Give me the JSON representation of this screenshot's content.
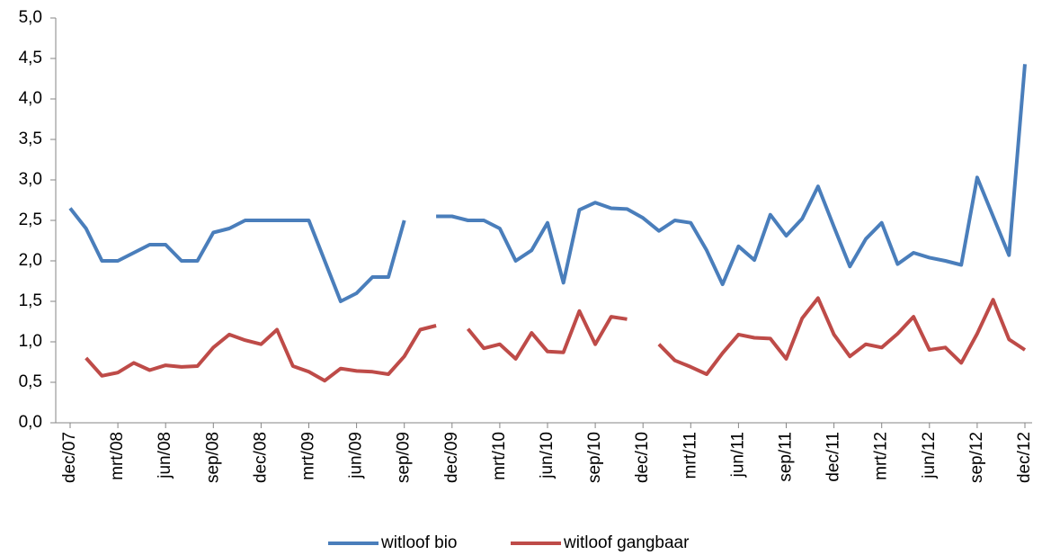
{
  "chart_data": {
    "type": "line",
    "categories": [
      "dec/07",
      null,
      null,
      "mrt/08",
      null,
      null,
      "jun/08",
      null,
      null,
      "sep/08",
      null,
      null,
      "dec/08",
      null,
      null,
      "mrt/09",
      null,
      null,
      "jun/09",
      null,
      null,
      "sep/09",
      null,
      null,
      "dec/09",
      null,
      null,
      "mrt/10",
      null,
      null,
      "jun/10",
      null,
      null,
      "sep/10",
      null,
      null,
      "dec/10",
      null,
      null,
      "mrt/11",
      null,
      null,
      "jun/11",
      null,
      null,
      "sep/11",
      null,
      null,
      "dec/11",
      null,
      null,
      "mrt/12",
      null,
      null,
      "jun/12",
      null,
      null,
      "sep/12",
      null,
      null,
      "dec/12"
    ],
    "series": [
      {
        "name": "witloof bio",
        "color": "#4a7ebb",
        "values": [
          2.65,
          2.4,
          2.0,
          2.0,
          2.1,
          2.2,
          2.2,
          2.0,
          2.0,
          2.35,
          2.4,
          2.5,
          2.5,
          2.5,
          2.5,
          2.5,
          2.0,
          1.5,
          1.6,
          1.8,
          1.8,
          2.5,
          null,
          2.55,
          2.55,
          2.5,
          2.5,
          2.4,
          2.0,
          2.13,
          2.47,
          1.73,
          2.63,
          2.72,
          2.65,
          2.64,
          2.53,
          2.37,
          2.5,
          2.47,
          2.13,
          1.71,
          2.18,
          2.01,
          2.57,
          2.31,
          2.52,
          2.92,
          2.42,
          1.93,
          2.27,
          2.47,
          1.96,
          2.1,
          2.04,
          2.0,
          1.95,
          3.03,
          2.55,
          2.07,
          4.43
        ]
      },
      {
        "name": "witloof gangbaar",
        "color": "#be4b48",
        "values": [
          null,
          0.8,
          0.58,
          0.62,
          0.74,
          0.65,
          0.71,
          0.69,
          0.7,
          0.93,
          1.09,
          1.02,
          0.97,
          1.15,
          0.7,
          0.63,
          0.52,
          0.67,
          0.64,
          0.63,
          0.6,
          0.82,
          1.15,
          1.2,
          null,
          1.16,
          0.92,
          0.97,
          0.79,
          1.11,
          0.88,
          0.87,
          1.38,
          0.97,
          1.31,
          1.28,
          null,
          0.97,
          0.77,
          0.69,
          0.6,
          0.86,
          1.09,
          1.05,
          1.04,
          0.79,
          1.29,
          1.54,
          1.09,
          0.82,
          0.97,
          0.93,
          1.1,
          1.31,
          0.9,
          0.93,
          0.74,
          1.1,
          1.52,
          1.03,
          0.9
        ]
      }
    ],
    "ylim": [
      0,
      5
    ],
    "yticks": [
      {
        "value": 0,
        "label": "0,0"
      },
      {
        "value": 0.5,
        "label": "0,5"
      },
      {
        "value": 1,
        "label": "1,0"
      },
      {
        "value": 1.5,
        "label": "1,5"
      },
      {
        "value": 2,
        "label": "2,0"
      },
      {
        "value": 2.5,
        "label": "2,5"
      },
      {
        "value": 3,
        "label": "3,0"
      },
      {
        "value": 3.5,
        "label": "3,5"
      },
      {
        "value": 4,
        "label": "4,0"
      },
      {
        "value": 4.5,
        "label": "4,5"
      },
      {
        "value": 5,
        "label": "5,0"
      }
    ],
    "grid": false,
    "legend": "bottom"
  }
}
